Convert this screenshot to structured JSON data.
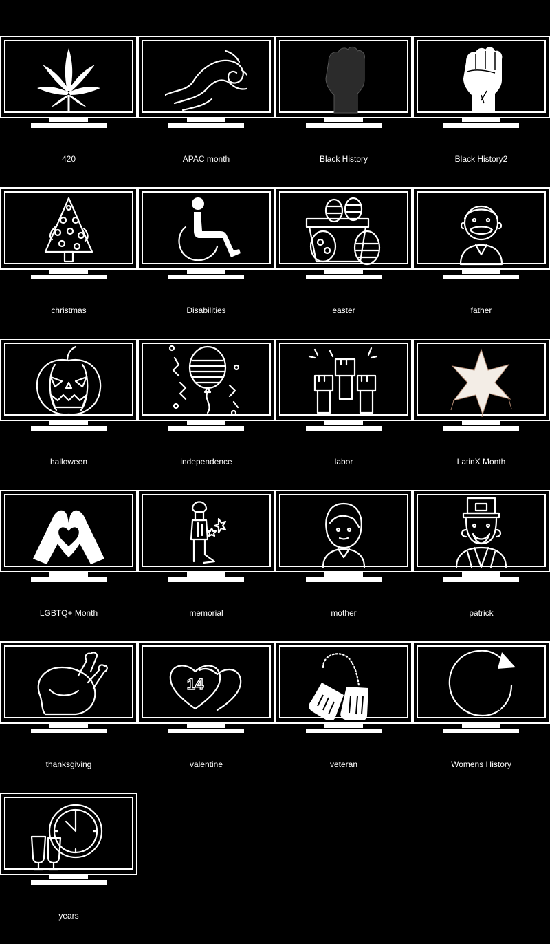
{
  "colors": {
    "background": "#000000",
    "foreground": "#ffffff",
    "dark_icon": "#2b2b2b",
    "cream_icon": "#f3ede6"
  },
  "tiles": [
    {
      "label": "420",
      "icon": "cannabis-leaf-icon"
    },
    {
      "label": "APAC month",
      "icon": "wave-icon"
    },
    {
      "label": "Black History",
      "icon": "raised-fist-dark-icon"
    },
    {
      "label": "Black History2",
      "icon": "raised-fist-light-icon"
    },
    {
      "label": "christmas",
      "icon": "christmas-tree-icon"
    },
    {
      "label": "Disabilities",
      "icon": "wheelchair-icon"
    },
    {
      "label": "easter",
      "icon": "easter-eggs-basket-icon"
    },
    {
      "label": "father",
      "icon": "father-avatar-icon"
    },
    {
      "label": "halloween",
      "icon": "jack-o-lantern-icon"
    },
    {
      "label": "independence",
      "icon": "flag-balloon-icon"
    },
    {
      "label": "labor",
      "icon": "raised-fists-icon"
    },
    {
      "label": "LatinX Month",
      "icon": "star-pinata-icon"
    },
    {
      "label": "LGBTQ+ Month",
      "icon": "heart-hands-icon"
    },
    {
      "label": "memorial",
      "icon": "soldier-memorial-icon"
    },
    {
      "label": "mother",
      "icon": "mother-avatar-icon"
    },
    {
      "label": "patrick",
      "icon": "leprechaun-icon"
    },
    {
      "label": "thanksgiving",
      "icon": "roast-turkey-icon"
    },
    {
      "label": "valentine",
      "icon": "hearts-14-icon"
    },
    {
      "label": "veteran",
      "icon": "dog-tags-icon"
    },
    {
      "label": "Womens History",
      "icon": "venus-symbol-icon"
    },
    {
      "label": "years",
      "icon": "clock-champagne-icon"
    }
  ],
  "valentine_badge": "14"
}
